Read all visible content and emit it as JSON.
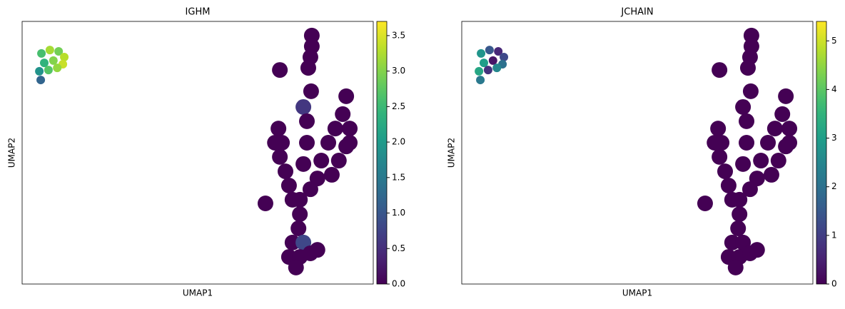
{
  "chart_data": [
    {
      "type": "scatter",
      "title": "IGHM",
      "x_label": "UMAP1",
      "y_label": "UMAP2",
      "colormap": "viridis",
      "xlim": [
        0,
        100
      ],
      "ylim": [
        0,
        100
      ],
      "x": [
        5.5,
        7.9,
        10.4,
        12.0,
        6.3,
        8.9,
        11.6,
        4.9,
        7.5,
        10.0,
        5.3,
        82.5,
        82.5,
        82.1,
        81.5,
        73.4,
        82.3,
        73.0,
        74.0,
        73.4,
        75.0,
        76.0,
        77.0,
        72.0,
        80.1,
        81.1,
        81.1,
        80.1,
        92.3,
        91.3,
        89.2,
        93.3,
        87.2,
        92.3,
        85.2,
        90.2,
        93.3,
        84.1,
        88.2,
        82.1,
        79.1,
        79.1,
        78.7,
        77.0,
        80.1,
        76.0,
        79.1,
        82.1,
        78.0,
        84.1,
        69.3
      ],
      "y": [
        87.8,
        89.1,
        88.6,
        86.4,
        84.2,
        85.1,
        83.7,
        81.0,
        81.5,
        82.3,
        77.7,
        94.6,
        90.5,
        86.4,
        82.3,
        81.5,
        73.4,
        59.2,
        53.8,
        48.4,
        42.9,
        37.5,
        32.1,
        53.8,
        67.4,
        62.0,
        53.8,
        45.7,
        71.5,
        64.7,
        59.2,
        59.2,
        53.8,
        52.4,
        47.0,
        47.0,
        53.8,
        40.2,
        41.6,
        36.1,
        32.1,
        26.6,
        21.2,
        15.8,
        15.8,
        10.3,
        10.3,
        11.7,
        6.3,
        13.0,
        30.7
      ],
      "values": [
        2.6,
        3.2,
        2.9,
        3.3,
        2.4,
        3.0,
        3.4,
        1.9,
        2.7,
        3.1,
        1.2,
        0,
        0,
        0,
        0,
        0,
        0,
        0,
        0,
        0,
        0,
        0,
        0,
        0,
        0.6,
        0,
        0,
        0,
        0,
        0,
        0,
        0,
        0,
        0,
        0,
        0,
        0,
        0,
        0,
        0,
        0,
        0,
        0,
        0,
        0.8,
        0,
        0,
        0,
        0,
        0,
        0
      ],
      "clim": [
        0,
        3.7
      ],
      "cticks": [
        {
          "value": 0,
          "label": "0.0"
        },
        0.5,
        {
          "value": 1,
          "label": "1.0"
        },
        1.5,
        {
          "value": 2,
          "label": "2.0"
        },
        2.5,
        {
          "value": 3,
          "label": "3.0"
        },
        3.5
      ]
    },
    {
      "type": "scatter",
      "title": "JCHAIN",
      "x_label": "UMAP1",
      "y_label": "UMAP2",
      "colormap": "viridis",
      "xlim": [
        0,
        100
      ],
      "ylim": [
        0,
        100
      ],
      "x": [
        5.5,
        7.9,
        10.4,
        12.0,
        6.3,
        8.9,
        11.6,
        4.9,
        7.5,
        10.0,
        5.3,
        82.5,
        82.5,
        82.1,
        81.5,
        73.4,
        82.3,
        73.0,
        74.0,
        73.4,
        75.0,
        76.0,
        77.0,
        72.0,
        80.1,
        81.1,
        81.1,
        80.1,
        92.3,
        91.3,
        89.2,
        93.3,
        87.2,
        92.3,
        85.2,
        90.2,
        93.3,
        84.1,
        88.2,
        82.1,
        79.1,
        79.1,
        78.7,
        77.0,
        80.1,
        76.0,
        79.1,
        82.1,
        78.0,
        84.1,
        69.3
      ],
      "y": [
        87.8,
        89.1,
        88.6,
        86.4,
        84.2,
        85.1,
        83.7,
        81.0,
        81.5,
        82.3,
        77.7,
        94.6,
        90.5,
        86.4,
        82.3,
        81.5,
        73.4,
        59.2,
        53.8,
        48.4,
        42.9,
        37.5,
        32.1,
        53.8,
        67.4,
        62.0,
        53.8,
        45.7,
        71.5,
        64.7,
        59.2,
        59.2,
        53.8,
        52.4,
        47.0,
        47.0,
        53.8,
        40.2,
        41.6,
        36.1,
        32.1,
        26.6,
        21.2,
        15.8,
        15.8,
        10.3,
        10.3,
        11.7,
        6.3,
        13.0,
        30.7
      ],
      "values": [
        2.8,
        1.5,
        0.6,
        1.2,
        3.0,
        0.3,
        2.0,
        3.2,
        0.8,
        2.5,
        2.2,
        0,
        0,
        0,
        0,
        0,
        0,
        0,
        0,
        0,
        0,
        0,
        0,
        0,
        0,
        0,
        0,
        0,
        0,
        0,
        0,
        0,
        0,
        0,
        0,
        0,
        0,
        0,
        0,
        0,
        0,
        0,
        0,
        0,
        0,
        0,
        0,
        0,
        0,
        0,
        0
      ],
      "clim": [
        0,
        5.4
      ],
      "cticks": [
        0,
        1,
        2,
        3,
        4,
        5
      ]
    }
  ]
}
